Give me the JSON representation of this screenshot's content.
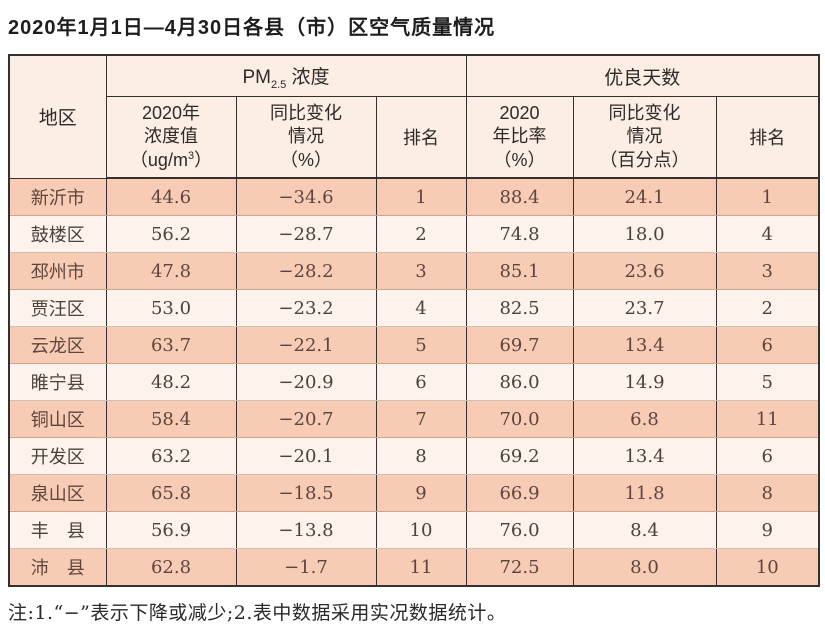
{
  "page": {
    "title": "2020年1月1日—4月30日各县（市）区空气质量情况",
    "footnote": "注:1.“−”表示下降或减少;2.表中数据采用实况数据统计。"
  },
  "colors": {
    "row_salmon": "#f8ccb4",
    "row_light": "#fdf3ec",
    "header_bg": "#fceee4",
    "border_dark": "#37312d",
    "text_data": "#4c413b"
  },
  "table": {
    "col_region": "地区",
    "group_pm": {
      "main": "PM",
      "sub": "2.5",
      "rest": " 浓度"
    },
    "group_good": "优良天数",
    "sub_pm_value": {
      "l1": "2020年",
      "l2": "浓度值",
      "l3_pre": "（ug/m",
      "l3_sup": "3",
      "l3_post": "）"
    },
    "sub_pm_change": {
      "l1": "同比变化",
      "l2": "情况",
      "l3": "（%）"
    },
    "sub_pm_rank": "排名",
    "sub_good_ratio": {
      "l1": "2020",
      "l2": "年比率",
      "l3": "（%）"
    },
    "sub_good_change": {
      "l1": "同比变化",
      "l2": "情况",
      "l3": "（百分点）"
    },
    "sub_good_rank": "排名",
    "rows": [
      {
        "region": "新沂市",
        "pm_value": "44.6",
        "pm_change": "−34.6",
        "pm_rank": "1",
        "good_ratio": "88.4",
        "good_change": "24.1",
        "good_rank": "1"
      },
      {
        "region": "鼓楼区",
        "pm_value": "56.2",
        "pm_change": "−28.7",
        "pm_rank": "2",
        "good_ratio": "74.8",
        "good_change": "18.0",
        "good_rank": "4"
      },
      {
        "region": "邳州市",
        "pm_value": "47.8",
        "pm_change": "−28.2",
        "pm_rank": "3",
        "good_ratio": "85.1",
        "good_change": "23.6",
        "good_rank": "3"
      },
      {
        "region": "贾汪区",
        "pm_value": "53.0",
        "pm_change": "−23.2",
        "pm_rank": "4",
        "good_ratio": "82.5",
        "good_change": "23.7",
        "good_rank": "2"
      },
      {
        "region": "云龙区",
        "pm_value": "63.7",
        "pm_change": "−22.1",
        "pm_rank": "5",
        "good_ratio": "69.7",
        "good_change": "13.4",
        "good_rank": "6"
      },
      {
        "region": "睢宁县",
        "pm_value": "48.2",
        "pm_change": "−20.9",
        "pm_rank": "6",
        "good_ratio": "86.0",
        "good_change": "14.9",
        "good_rank": "5"
      },
      {
        "region": "铜山区",
        "pm_value": "58.4",
        "pm_change": "−20.7",
        "pm_rank": "7",
        "good_ratio": "70.0",
        "good_change": "6.8",
        "good_rank": "11"
      },
      {
        "region": "开发区",
        "pm_value": "63.2",
        "pm_change": "−20.1",
        "pm_rank": "8",
        "good_ratio": "69.2",
        "good_change": "13.4",
        "good_rank": "6"
      },
      {
        "region": "泉山区",
        "pm_value": "65.8",
        "pm_change": "−18.5",
        "pm_rank": "9",
        "good_ratio": "66.9",
        "good_change": "11.8",
        "good_rank": "8"
      },
      {
        "region": "丰　县",
        "pm_value": "56.9",
        "pm_change": "−13.8",
        "pm_rank": "10",
        "good_ratio": "76.0",
        "good_change": "8.4",
        "good_rank": "9"
      },
      {
        "region": "沛　县",
        "pm_value": "62.8",
        "pm_change": "−1.7",
        "pm_rank": "11",
        "good_ratio": "72.5",
        "good_change": "8.0",
        "good_rank": "10"
      }
    ]
  }
}
